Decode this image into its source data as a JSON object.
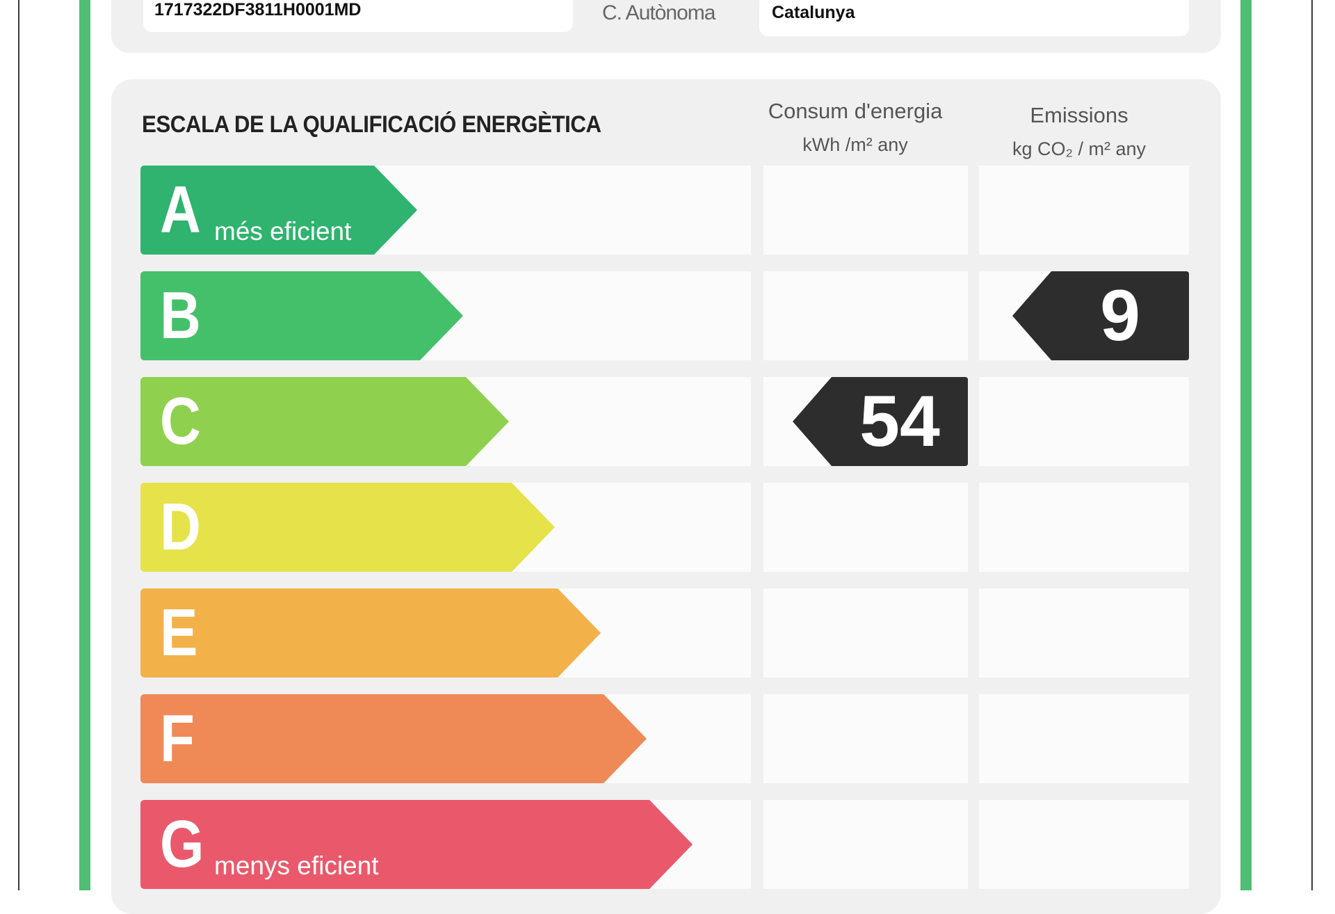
{
  "header": {
    "cadastral_ref": "1717322DF3811H0001MD",
    "region_label": "C. Autònoma",
    "region_value": "Catalunya"
  },
  "scale": {
    "title": "ESCALA DE LA QUALIFICACIÓ ENERGÈTICA",
    "consum_title": "Consum d'energia",
    "consum_units": "kWh /m² any",
    "emissions_title": "Emissions",
    "emissions_units": "kg CO₂ / m² any",
    "classes": [
      {
        "letter": "A",
        "note": "més eficient",
        "color": "#2fb36e"
      },
      {
        "letter": "B",
        "note": "",
        "color": "#45c06a"
      },
      {
        "letter": "C",
        "note": "",
        "color": "#8fd14f"
      },
      {
        "letter": "D",
        "note": "",
        "color": "#e6e24a"
      },
      {
        "letter": "E",
        "note": "",
        "color": "#f3b14a"
      },
      {
        "letter": "F",
        "note": "",
        "color": "#ef8a57"
      },
      {
        "letter": "G",
        "note": "menys eficient",
        "color": "#e9596b"
      }
    ]
  },
  "rating": {
    "consum_value": "54",
    "consum_class": "C",
    "emissions_value": "9",
    "emissions_class": "B",
    "indicator_color": "#2d2d2d"
  }
}
